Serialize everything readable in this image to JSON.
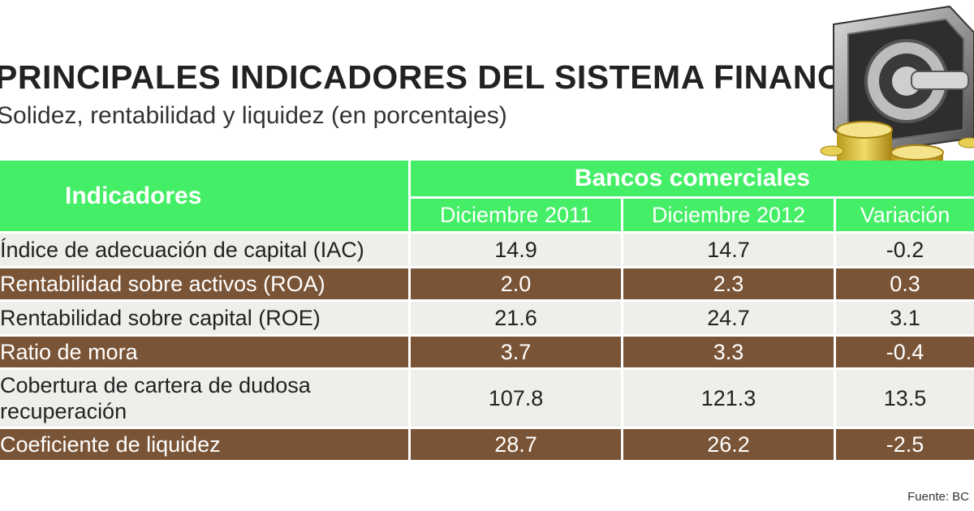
{
  "header": {
    "title": "PRINCIPALES INDICADORES DEL SISTEMA FINANCIERO",
    "subtitle": "Solidez, rentabilidad y liquidez (en porcentajes)"
  },
  "illustration": {
    "icon": "vault-with-coins-icon"
  },
  "colors": {
    "header_green": "#44ee66",
    "row_brown": "#7a5436",
    "row_light": "#eeeeea"
  },
  "chart_data": {
    "type": "table",
    "title": "PRINCIPALES INDICADORES DEL SISTEMA FINANCIERO",
    "subtitle": "Solidez, rentabilidad y liquidez (en porcentajes)",
    "row_header": "Indicadores",
    "column_group": "Bancos comerciales",
    "columns": [
      "Diciembre 2011",
      "Diciembre 2012",
      "Variación"
    ],
    "rows": [
      {
        "label_lines": [
          "Índice de adecuación de capital (IAC)"
        ],
        "values": [
          "14.9",
          "14.7",
          "-0.2"
        ]
      },
      {
        "label_lines": [
          "Rentabilidad sobre activos (ROA)"
        ],
        "values": [
          "2.0",
          "2.3",
          "0.3"
        ]
      },
      {
        "label_lines": [
          "Rentabilidad sobre capital (ROE)"
        ],
        "values": [
          "21.6",
          "24.7",
          "3.1"
        ]
      },
      {
        "label_lines": [
          "Ratio de mora"
        ],
        "values": [
          "3.7",
          "3.3",
          "-0.4"
        ]
      },
      {
        "label_lines": [
          "Cobertura de cartera de dudosa",
          "recuperación"
        ],
        "values": [
          "107.8",
          "121.3",
          "13.5"
        ]
      },
      {
        "label_lines": [
          "Coeficiente de liquidez"
        ],
        "values": [
          "28.7",
          "26.2",
          "-2.5"
        ]
      }
    ]
  },
  "footer": {
    "source": "Fuente: BC"
  }
}
